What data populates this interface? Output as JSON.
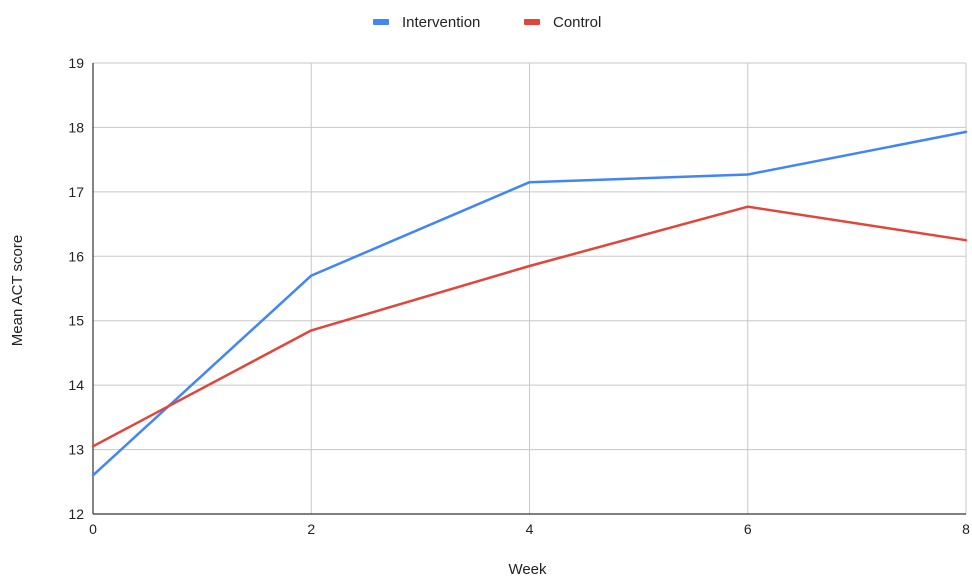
{
  "chart_data": {
    "type": "line",
    "title": "",
    "xlabel": "Week",
    "ylabel": "Mean ACT score",
    "x": [
      0,
      2,
      4,
      6,
      8
    ],
    "xlim": [
      0,
      8
    ],
    "ylim": [
      12,
      19
    ],
    "x_ticks": [
      0,
      2,
      4,
      6,
      8
    ],
    "y_ticks": [
      12,
      13,
      14,
      15,
      16,
      17,
      18,
      19
    ],
    "grid": true,
    "legend_position": "top-center",
    "series": [
      {
        "name": "Intervention",
        "color": "#4285f4",
        "values": [
          12.6,
          15.7,
          17.15,
          17.27,
          17.93
        ]
      },
      {
        "name": "Control",
        "color": "#e0463a",
        "values": [
          13.05,
          14.85,
          15.85,
          16.77,
          16.25
        ]
      }
    ]
  }
}
